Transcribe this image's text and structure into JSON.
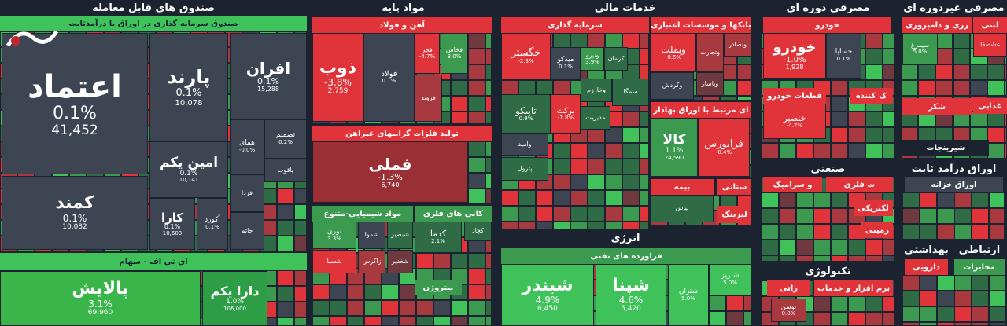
{
  "sectors": [
    {
      "title": "صندوق های قابل معامله",
      "groups": [
        {
          "title": "صندوق سرمایه گذاری در اوراق با درآمدثابت",
          "tiles": [
            {
              "name": "اعتماد",
              "change": "0.1%",
              "volume": "41,452"
            },
            {
              "name": "کمند",
              "change": "0.1%",
              "volume": "10,082"
            },
            {
              "name": "پارند",
              "change": "0.1%",
              "volume": "10,078"
            },
            {
              "name": "افران",
              "change": "0.1%",
              "volume": "15,288"
            },
            {
              "name": "امین یکم",
              "change": "0.1%",
              "volume": "10,141"
            },
            {
              "name": "کارا",
              "change": "0.1%",
              "volume": "10,603"
            },
            {
              "name": "آکورد",
              "change": "0.1%"
            },
            {
              "name": "همای",
              "change": "-0.0%"
            },
            {
              "name": "تصمیم",
              "change": "0.2%"
            },
            {
              "name": "یاقوت"
            },
            {
              "name": "فردا"
            },
            {
              "name": "خاتم"
            }
          ]
        },
        {
          "title": "ای تی اف - سهام",
          "tiles": [
            {
              "name": "پالایش",
              "change": "3.1%",
              "volume": "69,960"
            },
            {
              "name": "دارا یکم",
              "change": "1.0%",
              "volume": "106,000"
            }
          ]
        }
      ]
    },
    {
      "title": "مواد پایه",
      "groups": [
        {
          "title": "آهن و فولاد",
          "tiles": [
            {
              "name": "ذوب",
              "change": "-3.8%",
              "volume": "2,759"
            },
            {
              "name": "فولاد",
              "change": "0.1%"
            },
            {
              "name": "فجر",
              "change": "-4.7%"
            },
            {
              "name": "فخاس",
              "change": "3.0%"
            },
            {
              "name": "فروند"
            }
          ]
        },
        {
          "title": "تولید فلزات گرانبهای غیراهن",
          "tiles": [
            {
              "name": "فملی",
              "change": "-1.3%",
              "volume": "6,740"
            }
          ]
        },
        {
          "title": "مواد شیمیایی-متنوع",
          "tiles": [
            {
              "name": "نوری",
              "change": "3.3%"
            },
            {
              "name": "شموا"
            },
            {
              "name": "شبصیر"
            },
            {
              "name": "شسپا"
            },
            {
              "name": "زاگرس"
            },
            {
              "name": "شغدیر"
            }
          ]
        },
        {
          "title": "کانی های فلزی",
          "tiles": [
            {
              "name": "کدما",
              "change": "2.1%"
            },
            {
              "name": "کچاد"
            }
          ]
        },
        {
          "title": "نیتروژن",
          "tiles": []
        }
      ]
    },
    {
      "title": "خدمات مالی",
      "groups": [
        {
          "title": "سرمایه گذاری",
          "tiles": [
            {
              "name": "خگستر",
              "change": "-2.3%"
            },
            {
              "name": "میدکو",
              "change": "0.1%"
            },
            {
              "name": "ونیرو",
              "change": "3.9%"
            },
            {
              "name": "کرمان"
            },
            {
              "name": "وخارزم"
            },
            {
              "name": "تاپیکو",
              "change": "0.9%"
            },
            {
              "name": "برکت",
              "change": "-1.8%"
            },
            {
              "name": "مدیریت"
            },
            {
              "name": "سمگا"
            },
            {
              "name": "وامید"
            },
            {
              "name": "پترول"
            }
          ]
        },
        {
          "title": "بانکها و موسسات اعتباری",
          "tiles": [
            {
              "name": "وبملت",
              "change": "-0.5%"
            },
            {
              "name": "وتجارت"
            },
            {
              "name": "وبصادر"
            },
            {
              "name": "وپاسار"
            },
            {
              "name": "وگردش"
            }
          ]
        },
        {
          "title": "ای مرتبط با اوراق بهادار",
          "tiles": [
            {
              "name": "کالا",
              "change": "1.1%",
              "volume": "24,590"
            },
            {
              "name": "فرابورس",
              "change": "-0.4%"
            }
          ]
        },
        {
          "title": "بیمه",
          "tiles": [
            {
              "name": "بیاس"
            }
          ]
        },
        {
          "title": "ستانی",
          "tiles": []
        },
        {
          "title": "لیزینگ",
          "tiles": []
        }
      ]
    },
    {
      "title": "انرژی",
      "groups": [
        {
          "title": "فراورده های نفتی",
          "tiles": [
            {
              "name": "شبندر",
              "change": "4.9%",
              "volume": "6,450"
            },
            {
              "name": "شپنا",
              "change": "4.6%",
              "volume": "5,420"
            },
            {
              "name": "شتران",
              "change": "5.0%"
            },
            {
              "name": "شبریز",
              "change": "5.0%"
            }
          ]
        }
      ]
    },
    {
      "title": "مصرفی دوره ای",
      "groups": [
        {
          "title": "خودرو",
          "tiles": [
            {
              "name": "خودرو",
              "change": "-1.0%",
              "volume": "1,928"
            },
            {
              "name": "خساپا",
              "change": "0.1%"
            }
          ]
        },
        {
          "title": "قطعات خودرو",
          "tiles": [
            {
              "name": "خنصیر",
              "change": "-4.7%"
            }
          ]
        },
        {
          "title": "ک کننده",
          "tiles": []
        }
      ]
    },
    {
      "title": "صنعتی",
      "groups": [
        {
          "title": "و سرامیک",
          "tiles": []
        },
        {
          "title": "ت فلزی",
          "tiles": []
        },
        {
          "title": "لکتریکی",
          "tiles": []
        },
        {
          "title": "زمینی",
          "tiles": []
        }
      ]
    },
    {
      "title": "تکنولوژی",
      "groups": [
        {
          "title": "نرم افزار و خدمات",
          "tiles": [
            {
              "name": "توسن",
              "change": "0.8%"
            }
          ]
        },
        {
          "title": "راتی",
          "tiles": []
        }
      ]
    },
    {
      "title": "مصرفی غیردوره ای",
      "groups": [
        {
          "title": "رزی و دامپروری",
          "tiles": [
            {
              "name": "سیمرغ",
              "change": "5.0%"
            }
          ]
        },
        {
          "title": "لبنی",
          "tiles": [
            {
              "name": "غشصفا"
            }
          ]
        },
        {
          "title": "شکر",
          "tiles": []
        },
        {
          "title": "غذایی",
          "tiles": []
        },
        {
          "title": "شیرینجات",
          "tiles": []
        }
      ]
    },
    {
      "title": "اوراق درآمد ثابت",
      "groups": [
        {
          "title": "اوراق خزانه",
          "tiles": []
        }
      ]
    },
    {
      "title": "بهداشتی",
      "groups": [
        {
          "title": "دارویی",
          "tiles": []
        }
      ]
    },
    {
      "title": "ارتباطی",
      "groups": [
        {
          "title": "مخابرات",
          "tiles": []
        }
      ]
    }
  ]
}
